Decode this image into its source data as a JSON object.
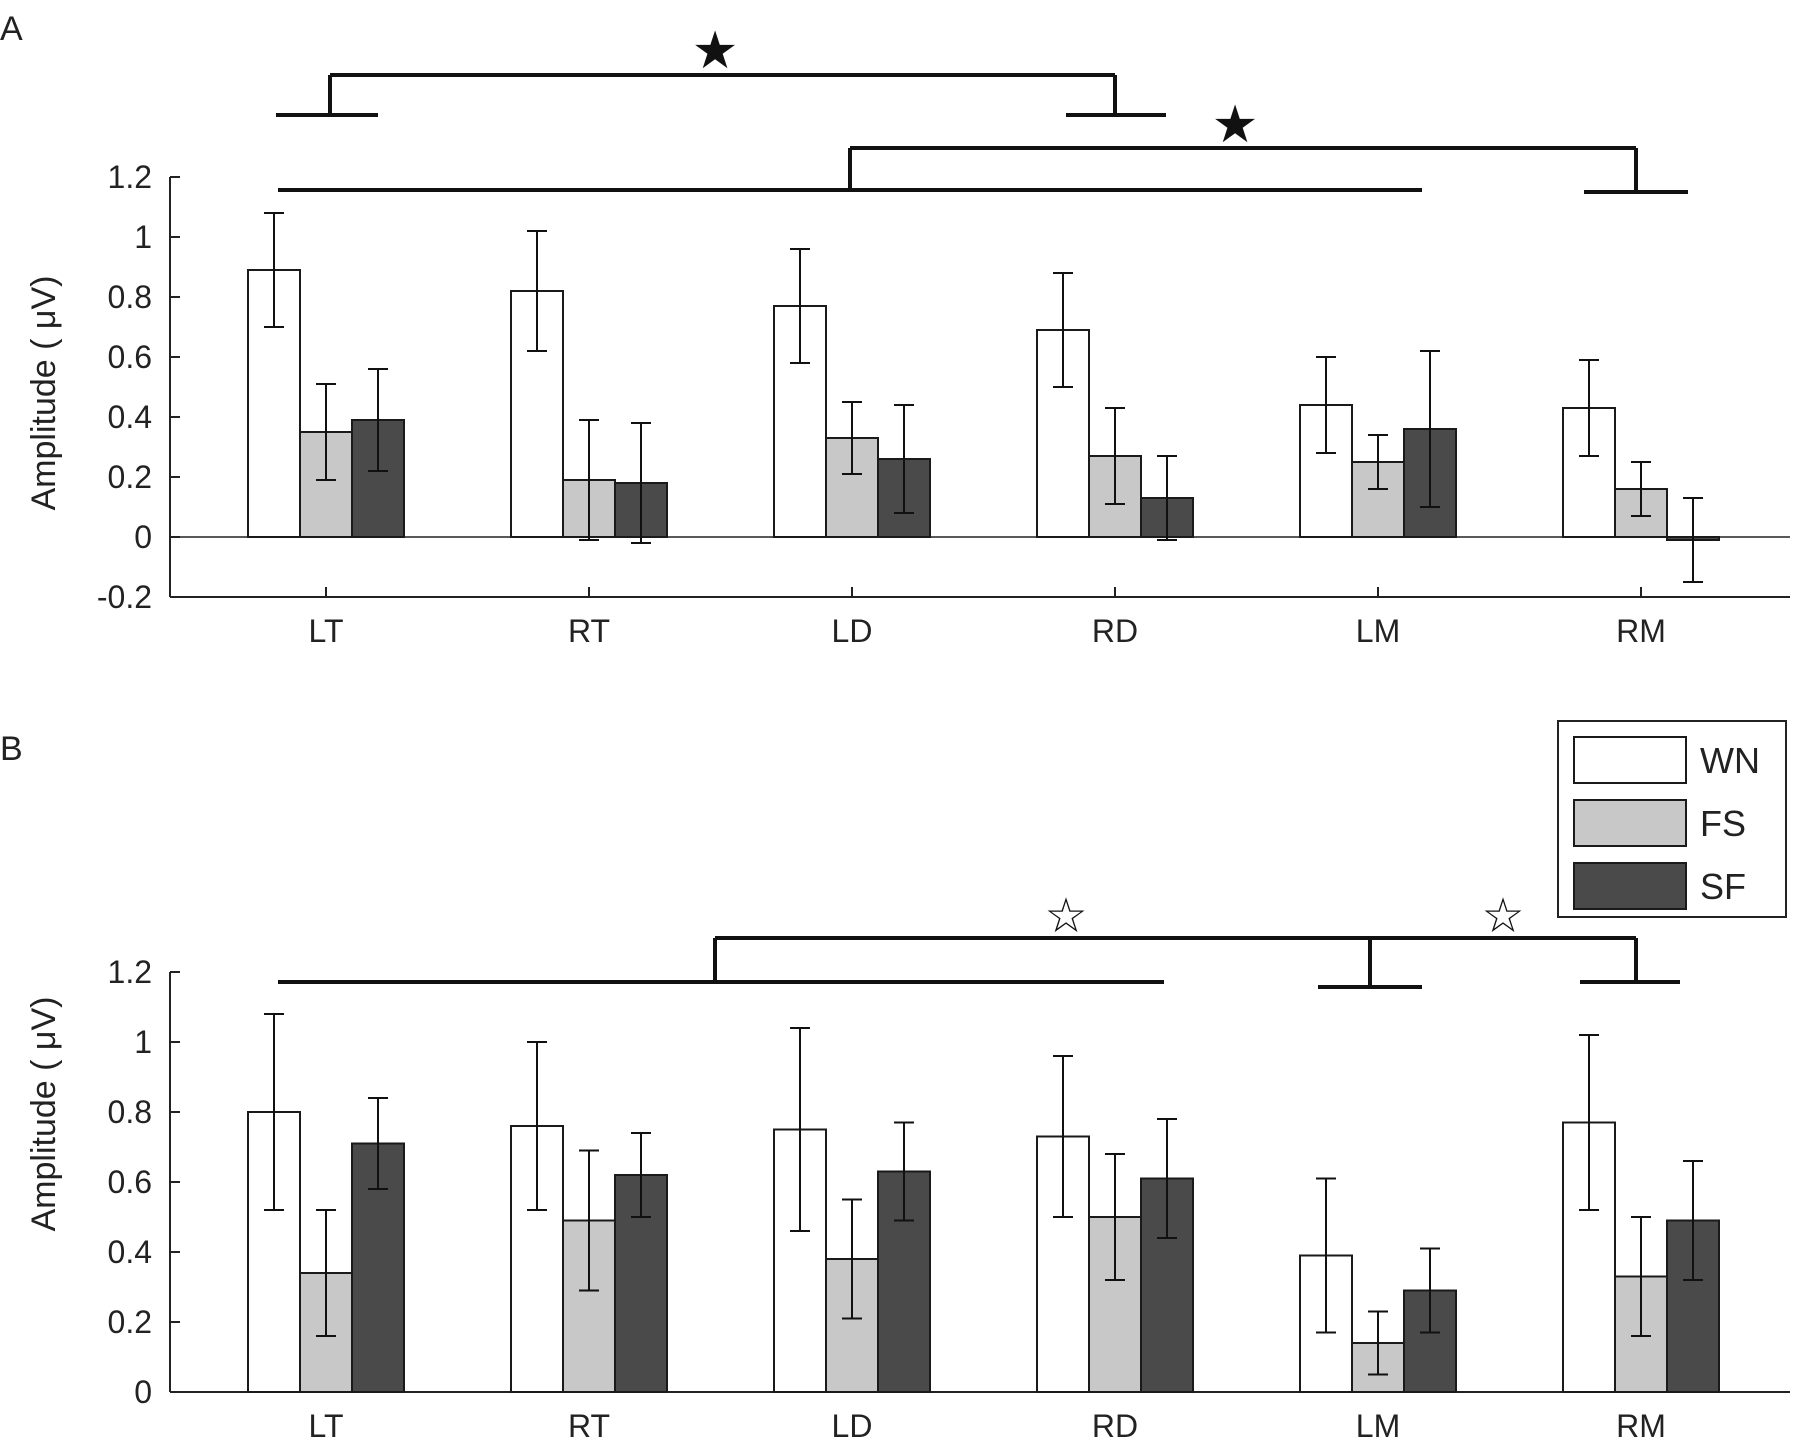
{
  "colors": {
    "WN": "#ffffff",
    "FS": "#c8c8c8",
    "SF": "#4a4a4a",
    "stroke": "#1a1a1a"
  },
  "chart_data": [
    {
      "panel_label": "A",
      "type": "bar",
      "ylabel": "Amplitude ( μV)",
      "ylim": [
        -0.2,
        1.2
      ],
      "yticks": [
        "-0.2",
        "0",
        "0.2",
        "0.4",
        "0.6",
        "0.8",
        "1",
        "1.2"
      ],
      "ytick_values": [
        -0.2,
        0,
        0.2,
        0.4,
        0.6,
        0.8,
        1,
        1.2
      ],
      "categories": [
        "LT",
        "RT",
        "LD",
        "RD",
        "LM",
        "RM"
      ],
      "series": [
        {
          "name": "WN",
          "values": [
            0.89,
            0.82,
            0.77,
            0.69,
            0.44,
            0.43
          ],
          "errors": [
            0.19,
            0.2,
            0.19,
            0.19,
            0.16,
            0.16
          ]
        },
        {
          "name": "FS",
          "values": [
            0.35,
            0.19,
            0.33,
            0.27,
            0.25,
            0.16
          ],
          "errors": [
            0.16,
            0.2,
            0.12,
            0.16,
            0.09,
            0.09
          ]
        },
        {
          "name": "SF",
          "values": [
            0.39,
            0.18,
            0.26,
            0.13,
            0.36,
            -0.01
          ],
          "errors": [
            0.17,
            0.2,
            0.18,
            0.14,
            0.26,
            0.14
          ]
        }
      ],
      "significance": [
        {
          "groups": [
            [
              "LT"
            ],
            [
              "RD"
            ]
          ],
          "marker": "★"
        },
        {
          "groups": [
            [
              "LT",
              "RT",
              "LD",
              "RD",
              "LM"
            ],
            [
              "RM"
            ]
          ],
          "marker": "★"
        }
      ],
      "legend": false
    },
    {
      "panel_label": "B",
      "type": "bar",
      "ylabel": "Amplitude ( μV)",
      "ylim": [
        0,
        1.2
      ],
      "yticks": [
        "0",
        "0.2",
        "0.4",
        "0.6",
        "0.8",
        "1",
        "1.2"
      ],
      "ytick_values": [
        0,
        0.2,
        0.4,
        0.6,
        0.8,
        1,
        1.2
      ],
      "categories": [
        "LT",
        "RT",
        "LD",
        "RD",
        "LM",
        "RM"
      ],
      "series": [
        {
          "name": "WN",
          "values": [
            0.8,
            0.76,
            0.75,
            0.73,
            0.39,
            0.77
          ],
          "errors": [
            0.28,
            0.24,
            0.29,
            0.23,
            0.22,
            0.25
          ]
        },
        {
          "name": "FS",
          "values": [
            0.34,
            0.49,
            0.38,
            0.5,
            0.14,
            0.33
          ],
          "errors": [
            0.18,
            0.2,
            0.17,
            0.18,
            0.09,
            0.17
          ]
        },
        {
          "name": "SF",
          "values": [
            0.71,
            0.62,
            0.63,
            0.61,
            0.29,
            0.49
          ],
          "errors": [
            0.13,
            0.12,
            0.14,
            0.17,
            0.12,
            0.17
          ]
        }
      ],
      "significance": [
        {
          "groups": [
            [
              "LT",
              "RT",
              "LD",
              "RD"
            ],
            [
              "LM"
            ]
          ],
          "marker": "☆"
        },
        {
          "groups": [
            [
              "LM"
            ],
            [
              "RM"
            ]
          ],
          "marker": "☆"
        }
      ],
      "legend": true,
      "legend_position": "top-right",
      "legend_entries": [
        "WN",
        "FS",
        "SF"
      ]
    }
  ]
}
